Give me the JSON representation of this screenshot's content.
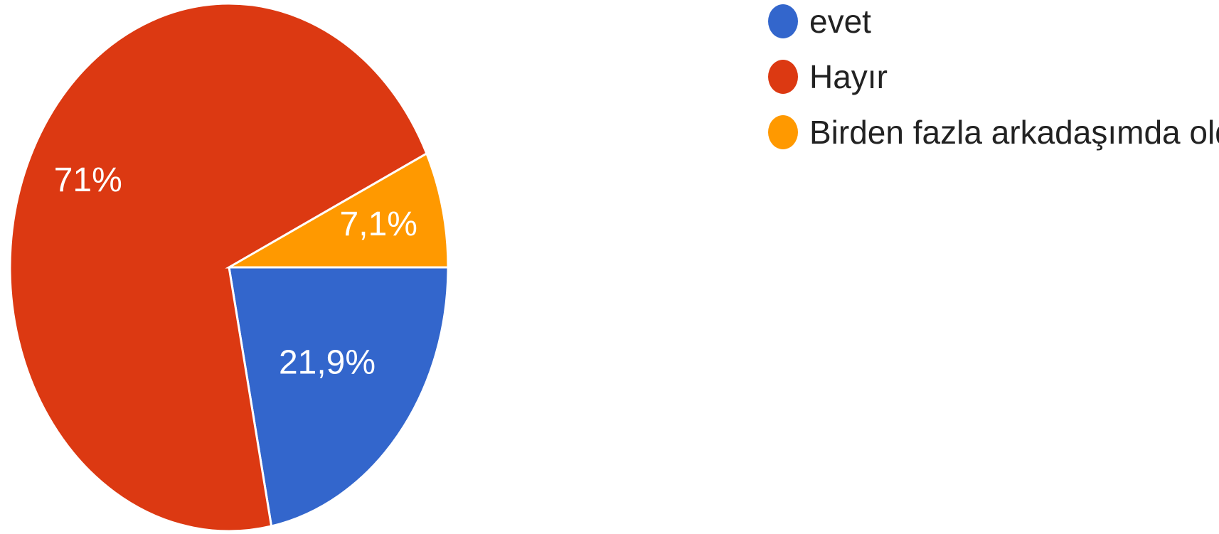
{
  "chart_data": {
    "type": "pie",
    "categories": [
      "evet",
      "Hayır",
      "Birden fazla arkadaşımda oldu"
    ],
    "values": [
      21.9,
      71,
      7.1
    ],
    "labels": [
      "21,9%",
      "71%",
      "7,1%"
    ],
    "colors": [
      "#3366cc",
      "#dc3912",
      "#ff9900"
    ],
    "legend_position": "right"
  }
}
